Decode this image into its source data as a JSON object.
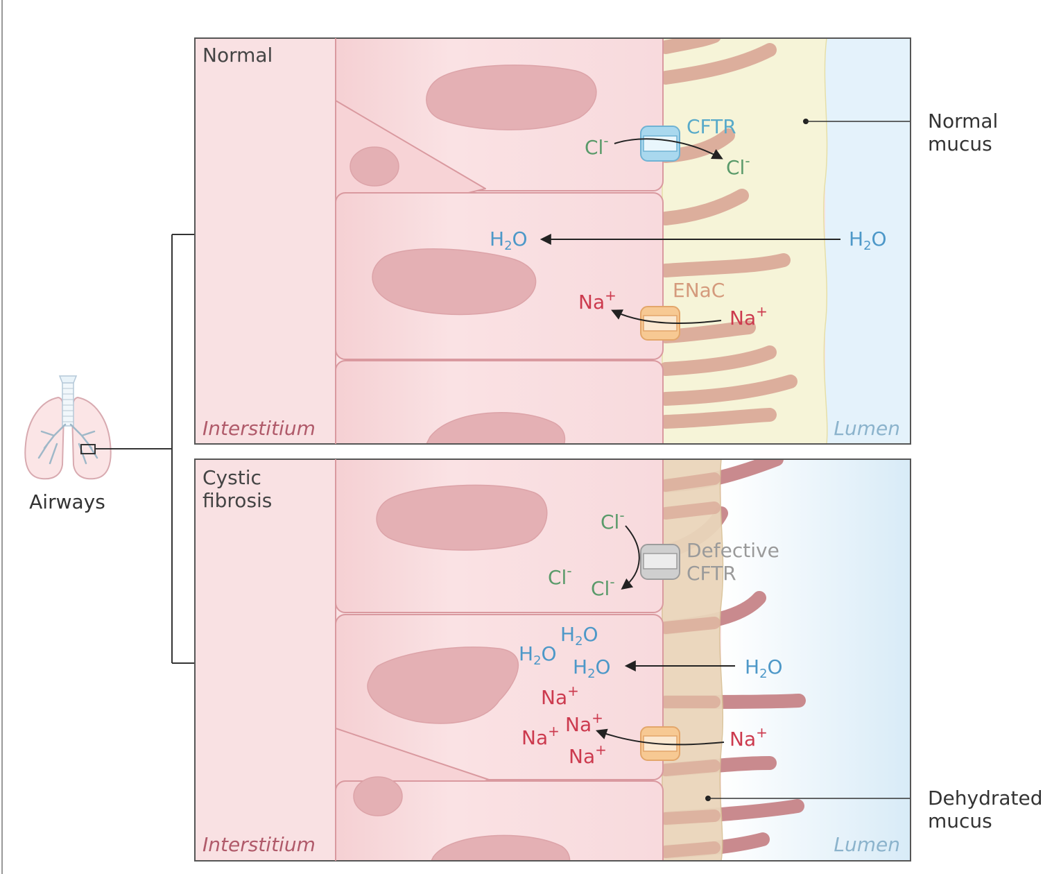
{
  "colors": {
    "cell": "#f7d8da",
    "cell_outline": "#d9999f",
    "nucleus": "#e4b0b4",
    "interstitium": "#f9e1e3",
    "normal_mucus": "#f6f4d8",
    "dehydrated_mucus": "#ead7bc",
    "lumen": "#e4f2fb",
    "cilia": "#dcae9c",
    "dehydrated_cilia": "#c98a8e",
    "cftr_channel": "#a9d8ee",
    "defective_cftr": "#cfcfcf",
    "enac_channel": "#f7c993",
    "chloride": "#5a9a6a",
    "water": "#4d98c8",
    "sodium": "#cc3a4e"
  },
  "icons": [
    "lungs-icon"
  ],
  "airways": {
    "label": "Airways"
  },
  "normal": {
    "title": "Normal",
    "interstitium": "Interstitium",
    "lumen": "Lumen",
    "cftr_label": "CFTR",
    "enac_label": "ENaC",
    "mucus_callout": {
      "line1": "Normal",
      "line2": "mucus"
    },
    "ions": {
      "cl_in": "Cl",
      "cl_out": "Cl",
      "cl_charge": "-",
      "h2o_left_h": "H",
      "h2o_left_o": "O",
      "h2o_right_h": "H",
      "h2o_right_o": "O",
      "h2o_sub": "2",
      "na_in": "Na",
      "na_out": "Na",
      "na_charge": "+"
    }
  },
  "cf": {
    "title_line1": "Cystic",
    "title_line2": "fibrosis",
    "interstitium": "Interstitium",
    "lumen": "Lumen",
    "defect_label_line1": "Defective",
    "defect_label_line2": "CFTR",
    "mucus_callout": {
      "line1": "Dehydrated",
      "line2": "mucus"
    },
    "ions": {
      "cl_a": "Cl",
      "cl_b": "Cl",
      "cl_c": "Cl",
      "cl_charge": "-",
      "h2o_a_h": "H",
      "h2o_a_o": "O",
      "h2o_b_h": "H",
      "h2o_b_o": "O",
      "h2o_c_h": "H",
      "h2o_c_o": "O",
      "h2o_d_h": "H",
      "h2o_d_o": "O",
      "h2o_sub": "2",
      "na_a": "Na",
      "na_b": "Na",
      "na_c": "Na",
      "na_d": "Na",
      "na_e": "Na",
      "na_charge": "+"
    }
  }
}
